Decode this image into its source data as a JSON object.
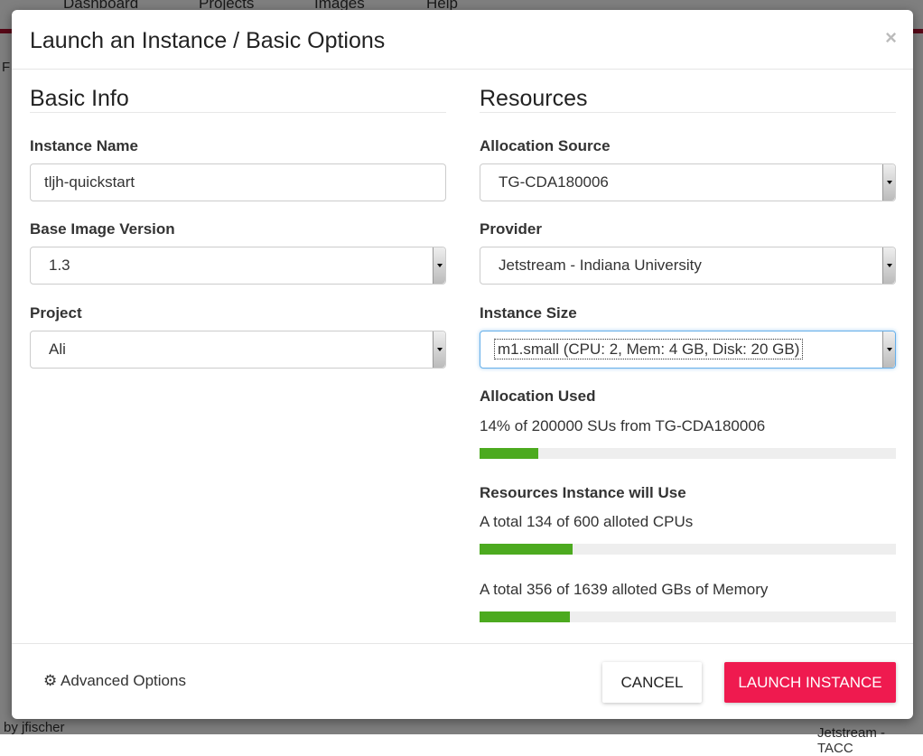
{
  "background": {
    "nav": [
      "Dashboard",
      "Projects",
      "Images",
      "Help"
    ],
    "fragments": [
      "F",
      "by jfischer",
      "Jetstream - TACC"
    ]
  },
  "modal": {
    "title": "Launch an Instance / Basic Options",
    "close": "×",
    "basic": {
      "heading": "Basic Info",
      "instance_name_label": "Instance Name",
      "instance_name_value": "tljh-quickstart",
      "image_version_label": "Base Image Version",
      "image_version_value": "1.3",
      "project_label": "Project",
      "project_value": "Ali"
    },
    "resources": {
      "heading": "Resources",
      "allocation_source_label": "Allocation Source",
      "allocation_source_value": "TG-CDA180006",
      "provider_label": "Provider",
      "provider_value": "Jetstream - Indiana University",
      "size_label": "Instance Size",
      "size_value": "m1.small (CPU: 2, Mem: 4 GB, Disk: 20 GB)",
      "allocation_used_label": "Allocation Used",
      "allocation_used_text": "14% of 200000 SUs from TG-CDA180006",
      "allocation_used_percent": 14,
      "will_use_label": "Resources Instance will Use",
      "cpu_text": "A total 134 of 600 alloted CPUs",
      "cpu_percent": 22.3,
      "mem_text": "A total 356 of 1639 alloted GBs of Memory",
      "mem_percent": 21.7,
      "bar_color": "#4caa1f"
    },
    "footer": {
      "advanced": "Advanced Options",
      "cancel": "CANCEL",
      "launch": "LAUNCH INSTANCE",
      "launch_color": "#ef1a4f"
    }
  }
}
